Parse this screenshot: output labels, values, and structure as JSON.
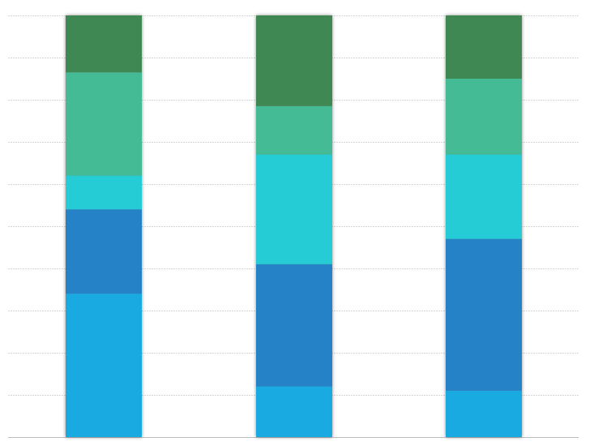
{
  "chart_data": {
    "type": "bar",
    "stacked": true,
    "normalized": true,
    "categories": [
      "",
      "",
      ""
    ],
    "series": [
      {
        "values": [
          34,
          12,
          11
        ],
        "color": "#1AAAE2"
      },
      {
        "values": [
          20,
          29,
          36
        ],
        "color": "#2582C7"
      },
      {
        "values": [
          8,
          26,
          20
        ],
        "color": "#25CCD6"
      },
      {
        "values": [
          24.5,
          11.5,
          18
        ],
        "color": "#44BA95"
      },
      {
        "values": [
          13.5,
          21.5,
          15
        ],
        "color": "#408853"
      }
    ],
    "ylim": [
      0,
      100
    ],
    "y_gridline_step": 10,
    "grid": true,
    "legend": "none",
    "title": "",
    "xlabel": "",
    "ylabel": ""
  }
}
